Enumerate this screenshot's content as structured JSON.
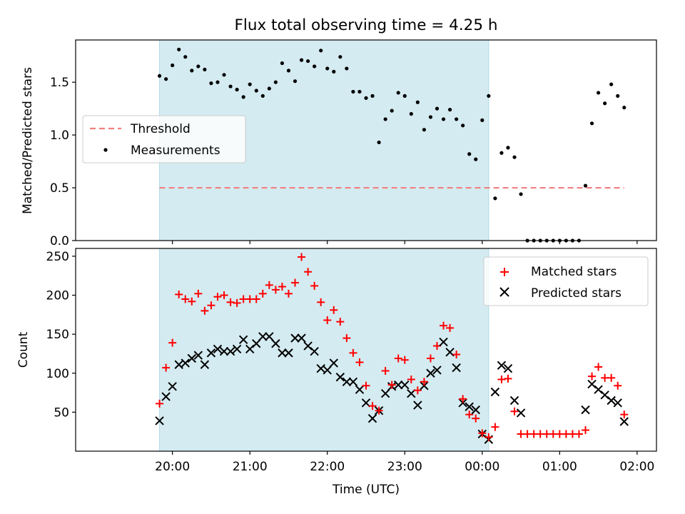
{
  "chart_data": [
    {
      "type": "scatter",
      "title": "Flux total observing time = 4.25 h",
      "xlabel": "",
      "ylabel": "Matched/Predicted stars",
      "ylim": [
        0,
        1.9
      ],
      "yticks": [
        "0.0",
        "0.5",
        "1.0",
        "1.5"
      ],
      "shaded_region": {
        "start": "19:50",
        "end": "00:05",
        "color": "#d4ebf1"
      },
      "legend": {
        "placement": "center-left",
        "entries": [
          "Threshold",
          "Measurements"
        ]
      },
      "threshold": {
        "name": "Threshold",
        "value": 0.5,
        "x_range": [
          "19:50",
          "01:50"
        ],
        "color": "#f08080"
      },
      "series": [
        {
          "name": "Measurements",
          "color": "#000000",
          "x": [
            "19:50",
            "19:55",
            "20:00",
            "20:05",
            "20:10",
            "20:15",
            "20:20",
            "20:25",
            "20:30",
            "20:35",
            "20:40",
            "20:45",
            "20:50",
            "20:55",
            "21:00",
            "21:05",
            "21:10",
            "21:15",
            "21:20",
            "21:25",
            "21:30",
            "21:35",
            "21:40",
            "21:45",
            "21:50",
            "21:55",
            "22:00",
            "22:05",
            "22:10",
            "22:15",
            "22:20",
            "22:25",
            "22:30",
            "22:35",
            "22:40",
            "22:45",
            "22:50",
            "22:55",
            "23:00",
            "23:05",
            "23:10",
            "23:15",
            "23:20",
            "23:25",
            "23:30",
            "23:35",
            "23:40",
            "23:45",
            "23:50",
            "23:55",
            "00:00",
            "00:05",
            "00:10",
            "00:15",
            "00:20",
            "00:25",
            "00:30",
            "00:35",
            "00:40",
            "00:45",
            "00:50",
            "00:55",
            "01:00",
            "01:05",
            "01:10",
            "01:15",
            "01:20",
            "01:25",
            "01:30",
            "01:35",
            "01:40",
            "01:45",
            "01:50"
          ],
          "y": [
            1.56,
            1.53,
            1.66,
            1.81,
            1.74,
            1.61,
            1.65,
            1.62,
            1.49,
            1.5,
            1.57,
            1.46,
            1.43,
            1.36,
            1.48,
            1.42,
            1.37,
            1.44,
            1.5,
            1.68,
            1.61,
            1.51,
            1.71,
            1.7,
            1.65,
            1.8,
            1.63,
            1.6,
            1.74,
            1.63,
            1.41,
            1.41,
            1.35,
            1.37,
            0.93,
            1.15,
            1.23,
            1.4,
            1.37,
            1.2,
            1.31,
            1.05,
            1.17,
            1.25,
            1.15,
            1.24,
            1.15,
            1.09,
            0.82,
            0.77,
            1.14,
            1.37,
            0.4,
            0.83,
            0.88,
            0.79,
            0.44,
            0.0,
            0.0,
            0.0,
            0.0,
            0.0,
            0.0,
            0.0,
            0.0,
            0.0,
            0.52,
            1.11,
            1.4,
            1.3,
            1.48,
            1.37,
            1.26
          ]
        }
      ]
    },
    {
      "type": "scatter",
      "title": "",
      "xlabel": "Time (UTC)",
      "ylabel": "Count",
      "ylim": [
        0,
        260
      ],
      "yticks": [
        "50",
        "100",
        "150",
        "200",
        "250"
      ],
      "xticks": [
        "20:00",
        "21:00",
        "22:00",
        "23:00",
        "00:00",
        "01:00",
        "02:00"
      ],
      "shaded_region": {
        "start": "19:50",
        "end": "00:05",
        "color": "#d4ebf1"
      },
      "legend": {
        "placement": "top-right",
        "entries": [
          "Matched stars",
          "Predicted stars"
        ]
      },
      "x": [
        "19:50",
        "19:55",
        "20:00",
        "20:05",
        "20:10",
        "20:15",
        "20:20",
        "20:25",
        "20:30",
        "20:35",
        "20:40",
        "20:45",
        "20:50",
        "20:55",
        "21:00",
        "21:05",
        "21:10",
        "21:15",
        "21:20",
        "21:25",
        "21:30",
        "21:35",
        "21:40",
        "21:45",
        "21:50",
        "21:55",
        "22:00",
        "22:05",
        "22:10",
        "22:15",
        "22:20",
        "22:25",
        "22:30",
        "22:35",
        "22:40",
        "22:45",
        "22:50",
        "22:55",
        "23:00",
        "23:05",
        "23:10",
        "23:15",
        "23:20",
        "23:25",
        "23:30",
        "23:35",
        "23:40",
        "23:45",
        "23:50",
        "23:55",
        "00:00",
        "00:05",
        "00:10",
        "00:15",
        "00:20",
        "00:25",
        "00:30",
        "00:35",
        "00:40",
        "00:45",
        "00:50",
        "00:55",
        "01:00",
        "01:05",
        "01:10",
        "01:15",
        "01:20",
        "01:25",
        "01:30",
        "01:35",
        "01:40",
        "01:45",
        "01:50"
      ],
      "series": [
        {
          "name": "Matched stars",
          "marker": "plus",
          "color": "#ff0000",
          "y": [
            61,
            107,
            139,
            201,
            195,
            192,
            202,
            180,
            187,
            198,
            200,
            191,
            190,
            195,
            195,
            195,
            202,
            213,
            207,
            211,
            202,
            216,
            249,
            230,
            212,
            191,
            168,
            181,
            166,
            145,
            126,
            114,
            84,
            58,
            52,
            103,
            85,
            119,
            117,
            92,
            78,
            89,
            119,
            135,
            161,
            158,
            124,
            67,
            47,
            42,
            23,
            18,
            31,
            92,
            93,
            51,
            22,
            22,
            22,
            22,
            22,
            22,
            22,
            22,
            22,
            22,
            27,
            96,
            108,
            94,
            94,
            84,
            47
          ]
        },
        {
          "name": "Predicted stars",
          "marker": "x",
          "color": "#000000",
          "y": [
            39,
            70,
            83,
            111,
            113,
            119,
            123,
            111,
            126,
            131,
            128,
            128,
            131,
            143,
            131,
            138,
            147,
            147,
            138,
            126,
            126,
            145,
            145,
            135,
            128,
            106,
            104,
            113,
            95,
            89,
            89,
            79,
            62,
            42,
            52,
            74,
            83,
            85,
            85,
            74,
            59,
            84,
            100,
            104,
            140,
            127,
            107,
            62,
            57,
            53,
            22,
            15,
            76,
            110,
            106,
            65,
            49,
            null,
            null,
            null,
            null,
            null,
            null,
            null,
            null,
            null,
            53,
            86,
            79,
            72,
            65,
            62,
            38
          ]
        }
      ]
    }
  ]
}
